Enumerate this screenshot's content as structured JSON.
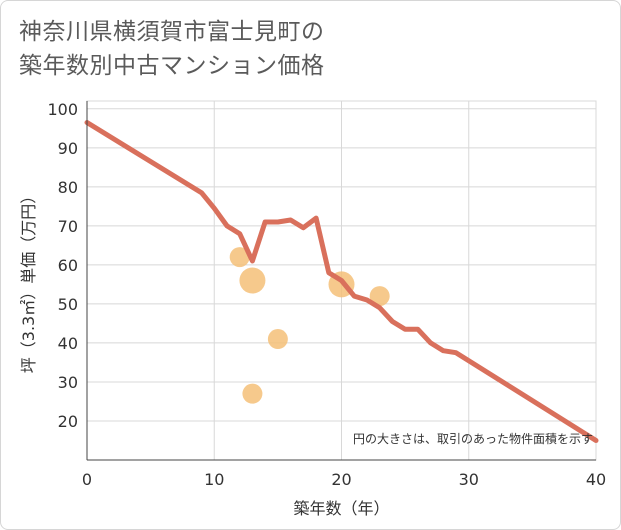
{
  "title_line1": "神奈川県横須賀市富士見町の",
  "title_line2": "築年数別中古マンション価格",
  "chart_data": {
    "type": "scatter",
    "title": "神奈川県横須賀市富士見町の築年数別中古マンション価格",
    "xlabel": "築年数（年）",
    "ylabel": "坪（3.3㎡）単価（万円）",
    "xlim": [
      0,
      40
    ],
    "ylim": [
      10,
      102
    ],
    "xticks": [
      0,
      10,
      20,
      30,
      40
    ],
    "yticks": [
      20,
      30,
      40,
      50,
      60,
      70,
      80,
      90,
      100
    ],
    "grid": true,
    "note": "円の大きさは、取引のあった物件面積を示す",
    "colors": {
      "line": "#d9705c",
      "bubble": "#f4c078",
      "grid": "#d8d8d8"
    },
    "scatter": [
      {
        "x": 12,
        "y": 62,
        "size": 10
      },
      {
        "x": 13,
        "y": 56,
        "size": 13
      },
      {
        "x": 13,
        "y": 27,
        "size": 10
      },
      {
        "x": 15,
        "y": 41,
        "size": 10
      },
      {
        "x": 20,
        "y": 55,
        "size": 13
      },
      {
        "x": 23,
        "y": 52,
        "size": 10
      }
    ],
    "line": {
      "x": [
        0,
        9,
        10,
        11,
        12,
        13,
        14,
        15,
        16,
        17,
        18,
        19,
        20,
        21,
        22,
        23,
        24,
        25,
        26,
        27,
        28,
        29,
        40
      ],
      "y": [
        96.5,
        78.5,
        74.5,
        70,
        68,
        61,
        71,
        71,
        71.5,
        69.5,
        72,
        58,
        56,
        52,
        51,
        49,
        45.5,
        43.5,
        43.5,
        40,
        38,
        37.5,
        15
      ]
    }
  }
}
